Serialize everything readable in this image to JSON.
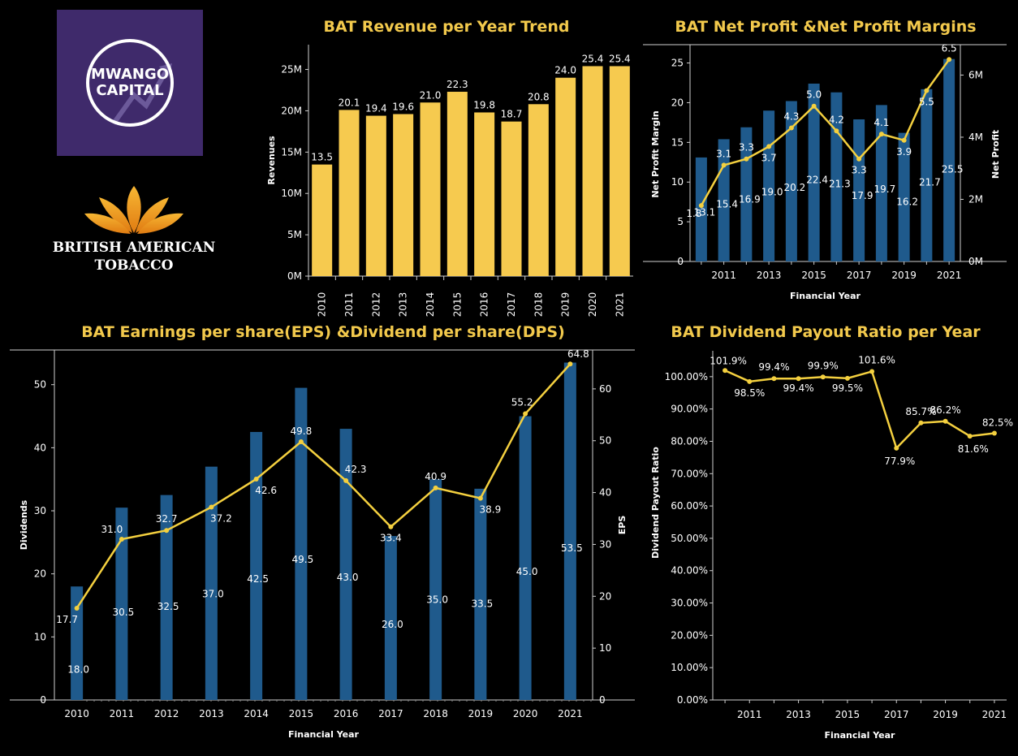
{
  "logos": {
    "mwango": {
      "line1": "MWANGO",
      "line2": "CAPITAL"
    },
    "bat": {
      "line1": "BRITISH AMERICAN",
      "line2": "TOBACCO"
    }
  },
  "colors": {
    "bar_yellow": "#f6ca4f",
    "bar_blue": "#1f5a8c",
    "line_yellow": "#f4d03f",
    "title": "#f2c94c",
    "bg": "#000000"
  },
  "chart_data": [
    {
      "id": "revenue",
      "type": "bar",
      "title": "BAT Revenue per Year Trend",
      "xlabel": "",
      "ylabel": "Revenues",
      "categories": [
        "2010",
        "2011",
        "2012",
        "2013",
        "2014",
        "2015",
        "2016",
        "2017",
        "2018",
        "2019",
        "2020",
        "2021"
      ],
      "values": [
        13.5,
        20.1,
        19.4,
        19.6,
        21.0,
        22.3,
        19.8,
        18.7,
        20.8,
        24.0,
        25.4,
        25.4
      ],
      "data_labels": [
        "13.5",
        "20.1",
        "19.4",
        "19.6",
        "21.0",
        "22.3",
        "19.8",
        "18.7",
        "20.8",
        "24.0",
        "25.4",
        "25.4"
      ],
      "ylim": [
        0,
        28
      ],
      "yticks": [
        {
          "v": 0,
          "label": "0M"
        },
        {
          "v": 5,
          "label": "5M"
        },
        {
          "v": 10,
          "label": "10M"
        },
        {
          "v": 15,
          "label": "15M"
        },
        {
          "v": 20,
          "label": "20M"
        },
        {
          "v": 25,
          "label": "25M"
        }
      ],
      "grid": false
    },
    {
      "id": "net-profit",
      "type": "bar+line",
      "title": "BAT Net Profit &Net Profit Margins",
      "xlabel": "Financial Year",
      "ylabel_left": "Net Profit Margin",
      "ylabel_right": "Net Profit",
      "x": [
        "2010",
        "2011",
        "2012",
        "2013",
        "2014",
        "2015",
        "2016",
        "2017",
        "2018",
        "2019",
        "2020",
        "2021"
      ],
      "x_tick_labels": [
        "2011",
        "2013",
        "2015",
        "2017",
        "2019",
        "2021"
      ],
      "bars": [
        13.1,
        15.4,
        16.9,
        19.0,
        20.2,
        22.4,
        21.3,
        17.9,
        19.7,
        16.2,
        21.7,
        25.5
      ],
      "bar_labels": [
        "13.1",
        "15.4",
        "16.9",
        "19.0",
        "20.2",
        "22.4",
        "21.3",
        "17.9",
        "19.7",
        "16.2",
        "21.7",
        "25.5"
      ],
      "line": [
        1.8,
        3.1,
        3.3,
        3.7,
        4.3,
        5.0,
        4.2,
        3.3,
        4.1,
        3.9,
        5.5,
        6.5
      ],
      "line_labels": [
        "1.8",
        "3.1",
        "3.3",
        "3.7",
        "4.3",
        "5.0",
        "4.2",
        "3.3",
        "4.1",
        "3.9",
        "5.5",
        "6.5"
      ],
      "ylim_left": [
        0,
        27
      ],
      "yticks_left": [
        "0",
        "5",
        "10",
        "15",
        "20",
        "25"
      ],
      "ylim_right": [
        0,
        6.9
      ],
      "yticks_right": [
        {
          "v": 0,
          "label": "0M"
        },
        {
          "v": 2,
          "label": "2M"
        },
        {
          "v": 4,
          "label": "4M"
        },
        {
          "v": 6,
          "label": "6M"
        }
      ],
      "grid": false
    },
    {
      "id": "eps-dps",
      "type": "bar+line",
      "title": "BAT Earnings per share(EPS) &Dividend per share(DPS)",
      "xlabel": "Financial Year",
      "ylabel_left": "Dividends",
      "ylabel_right": "EPS",
      "categories": [
        "2010",
        "2011",
        "2012",
        "2013",
        "2014",
        "2015",
        "2016",
        "2017",
        "2018",
        "2019",
        "2020",
        "2021"
      ],
      "bars": [
        18.0,
        30.5,
        32.5,
        37.0,
        42.5,
        49.5,
        43.0,
        26.0,
        35.0,
        33.5,
        45.0,
        53.5
      ],
      "bar_labels": [
        "18.0",
        "30.5",
        "32.5",
        "37.0",
        "42.5",
        "49.5",
        "43.0",
        "26.0",
        "35.0",
        "33.5",
        "45.0",
        "53.5"
      ],
      "line": [
        17.7,
        31.0,
        32.7,
        37.2,
        42.6,
        49.8,
        42.3,
        33.4,
        40.9,
        38.9,
        55.2,
        64.8
      ],
      "line_labels": [
        "17.7",
        "31.0",
        "32.7",
        "37.2",
        "42.6",
        "49.8",
        "42.3",
        "33.4",
        "40.9",
        "38.9",
        "55.2",
        "64.8"
      ],
      "ylim_left": [
        0,
        55.5
      ],
      "yticks_left": [
        "0",
        "10",
        "20",
        "30",
        "40",
        "50"
      ],
      "ylim_right": [
        0,
        67.5
      ],
      "yticks_right": [
        "0",
        "10",
        "20",
        "30",
        "40",
        "50",
        "60"
      ],
      "grid": false
    },
    {
      "id": "payout",
      "type": "line",
      "title": "BAT Dividend Payout Ratio per Year",
      "xlabel": "Financial Year",
      "ylabel": "Dividend Payout Ratio",
      "x": [
        "2010",
        "2011",
        "2012",
        "2013",
        "2014",
        "2015",
        "2016",
        "2017",
        "2018",
        "2019",
        "2020",
        "2021"
      ],
      "x_tick_labels": [
        "2011",
        "2013",
        "2015",
        "2017",
        "2019",
        "2021"
      ],
      "values": [
        101.9,
        98.5,
        99.4,
        99.4,
        99.9,
        99.5,
        101.6,
        77.9,
        85.7,
        86.2,
        81.6,
        82.5
      ],
      "data_labels": [
        "101.9%",
        "98.5%",
        "99.4%",
        "99.4%",
        "99.9%",
        "99.5%",
        "101.6%",
        "77.9%",
        "85.7%",
        "86.2%",
        "81.6%",
        "82.5%"
      ],
      "ylim": [
        0,
        108
      ],
      "yticks": [
        "0.00%",
        "10.00%",
        "20.00%",
        "30.00%",
        "40.00%",
        "50.00%",
        "60.00%",
        "70.00%",
        "80.00%",
        "90.00%",
        "100.00%"
      ],
      "grid": false
    }
  ]
}
